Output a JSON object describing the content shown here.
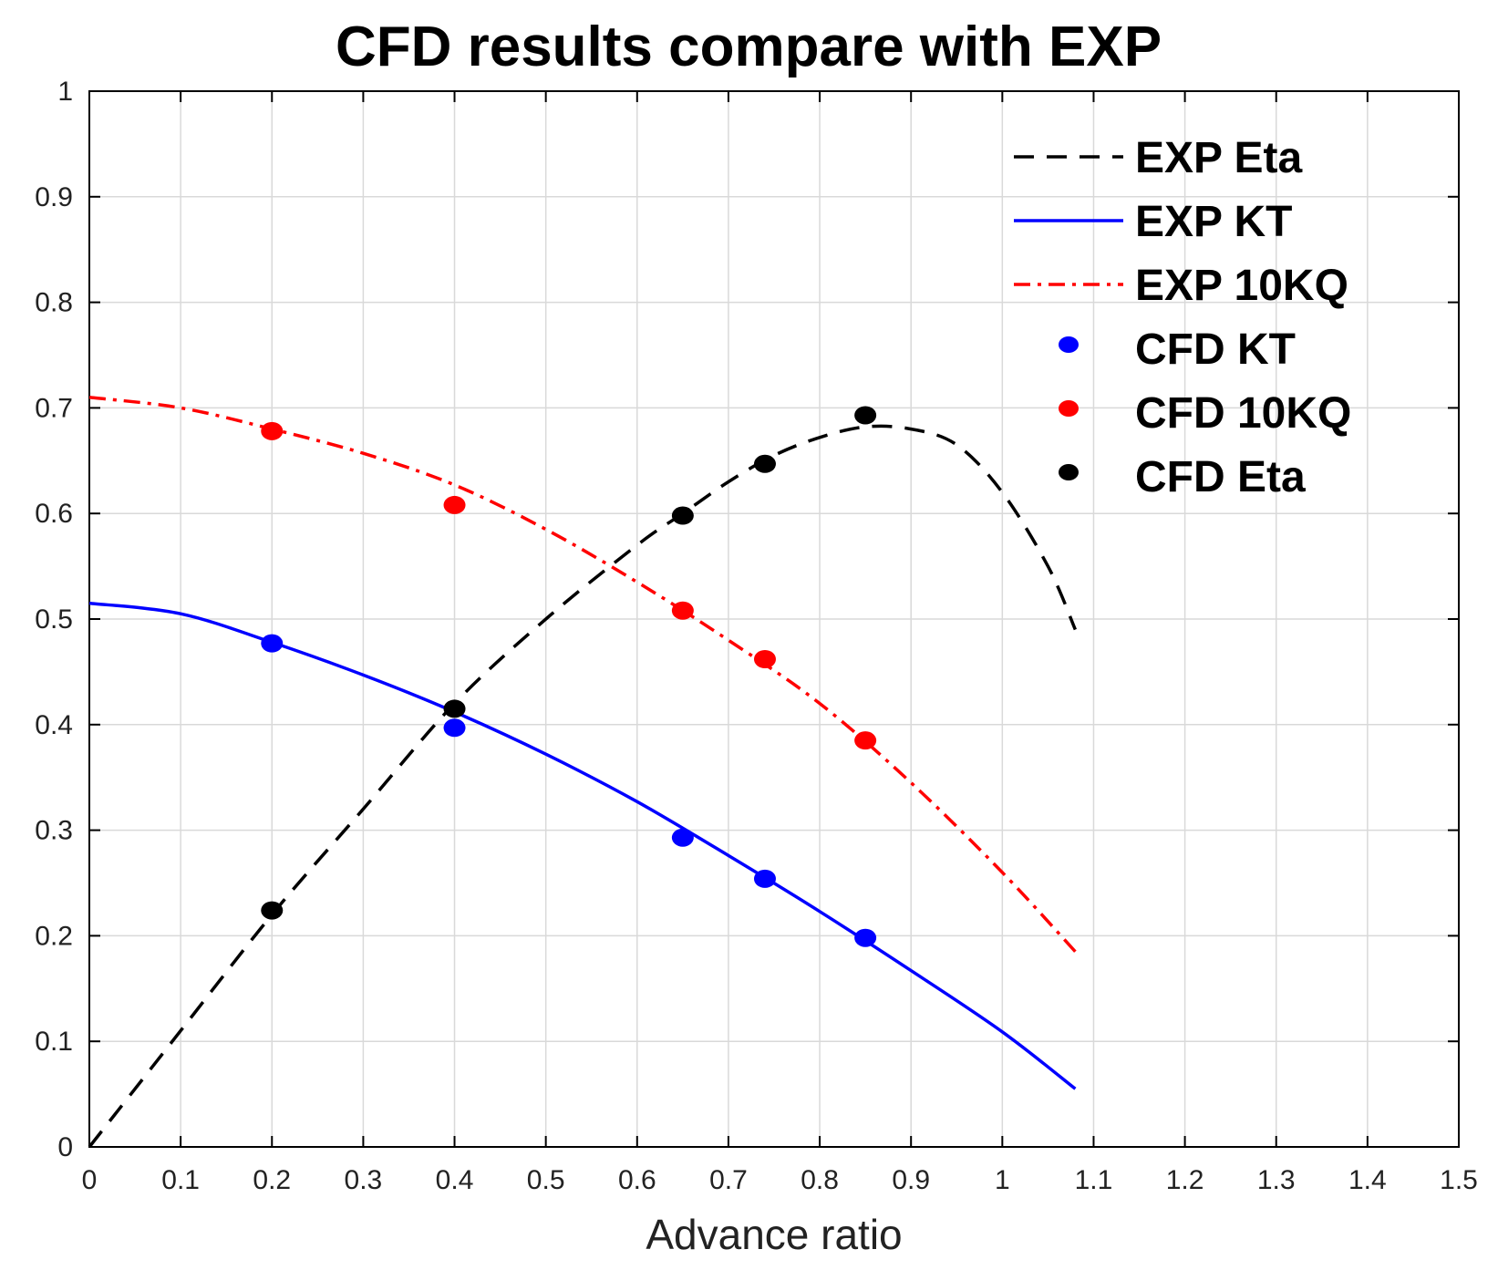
{
  "chart_data": {
    "type": "line",
    "title": "CFD results compare with EXP",
    "xlabel": "Advance ratio",
    "ylabel": "",
    "xlim": [
      0,
      1.5
    ],
    "ylim": [
      0,
      1
    ],
    "xticks": [
      0,
      0.1,
      0.2,
      0.3,
      0.4,
      0.5,
      0.6,
      0.7,
      0.8,
      0.9,
      1,
      1.1,
      1.2,
      1.3,
      1.4,
      1.5
    ],
    "xtick_labels": [
      "0",
      "0.1",
      "0.2",
      "0.3",
      "0.4",
      "0.5",
      "0.6",
      "0.7",
      "0.8",
      "0.9",
      "1",
      "1.1",
      "1.2",
      "1.3",
      "1.4",
      "1.5"
    ],
    "yticks": [
      0,
      0.1,
      0.2,
      0.3,
      0.4,
      0.5,
      0.6,
      0.7,
      0.8,
      0.9,
      1
    ],
    "ytick_labels": [
      "0",
      "0.1",
      "0.2",
      "0.3",
      "0.4",
      "0.5",
      "0.6",
      "0.7",
      "0.8",
      "0.9",
      "1"
    ],
    "grid": true,
    "legend_position": "top-right",
    "series": [
      {
        "name": "EXP Eta",
        "kind": "line",
        "style": "dashed",
        "color": "#000000",
        "x": [
          0,
          0.1,
          0.2,
          0.3,
          0.4,
          0.5,
          0.6,
          0.65,
          0.7,
          0.75,
          0.8,
          0.85,
          0.9,
          0.95,
          1.0,
          1.05,
          1.08
        ],
        "y": [
          0,
          0.11,
          0.22,
          0.32,
          0.42,
          0.5,
          0.57,
          0.6,
          0.63,
          0.655,
          0.672,
          0.682,
          0.68,
          0.665,
          0.62,
          0.55,
          0.49
        ]
      },
      {
        "name": "EXP KT",
        "kind": "line",
        "style": "solid",
        "color": "#0000ff",
        "x": [
          0,
          0.1,
          0.2,
          0.3,
          0.4,
          0.5,
          0.6,
          0.7,
          0.8,
          0.9,
          1.0,
          1.08
        ],
        "y": [
          0.515,
          0.505,
          0.478,
          0.447,
          0.412,
          0.372,
          0.327,
          0.276,
          0.223,
          0.167,
          0.109,
          0.055
        ]
      },
      {
        "name": "EXP 10KQ",
        "kind": "line",
        "style": "dashdot",
        "color": "#ff0000",
        "x": [
          0,
          0.1,
          0.2,
          0.3,
          0.4,
          0.5,
          0.6,
          0.7,
          0.8,
          0.9,
          1.0,
          1.08
        ],
        "y": [
          0.71,
          0.7,
          0.68,
          0.657,
          0.627,
          0.585,
          0.535,
          0.48,
          0.42,
          0.345,
          0.26,
          0.185
        ]
      },
      {
        "name": "CFD KT",
        "kind": "scatter",
        "color": "#0000ff",
        "x": [
          0.2,
          0.4,
          0.65,
          0.74,
          0.85
        ],
        "y": [
          0.477,
          0.397,
          0.293,
          0.254,
          0.198
        ]
      },
      {
        "name": "CFD 10KQ",
        "kind": "scatter",
        "color": "#ff0000",
        "x": [
          0.2,
          0.4,
          0.65,
          0.74,
          0.85
        ],
        "y": [
          0.678,
          0.608,
          0.508,
          0.462,
          0.385
        ]
      },
      {
        "name": "CFD Eta",
        "kind": "scatter",
        "color": "#000000",
        "x": [
          0.2,
          0.4,
          0.65,
          0.74,
          0.85
        ],
        "y": [
          0.224,
          0.415,
          0.598,
          0.647,
          0.693
        ]
      }
    ]
  }
}
